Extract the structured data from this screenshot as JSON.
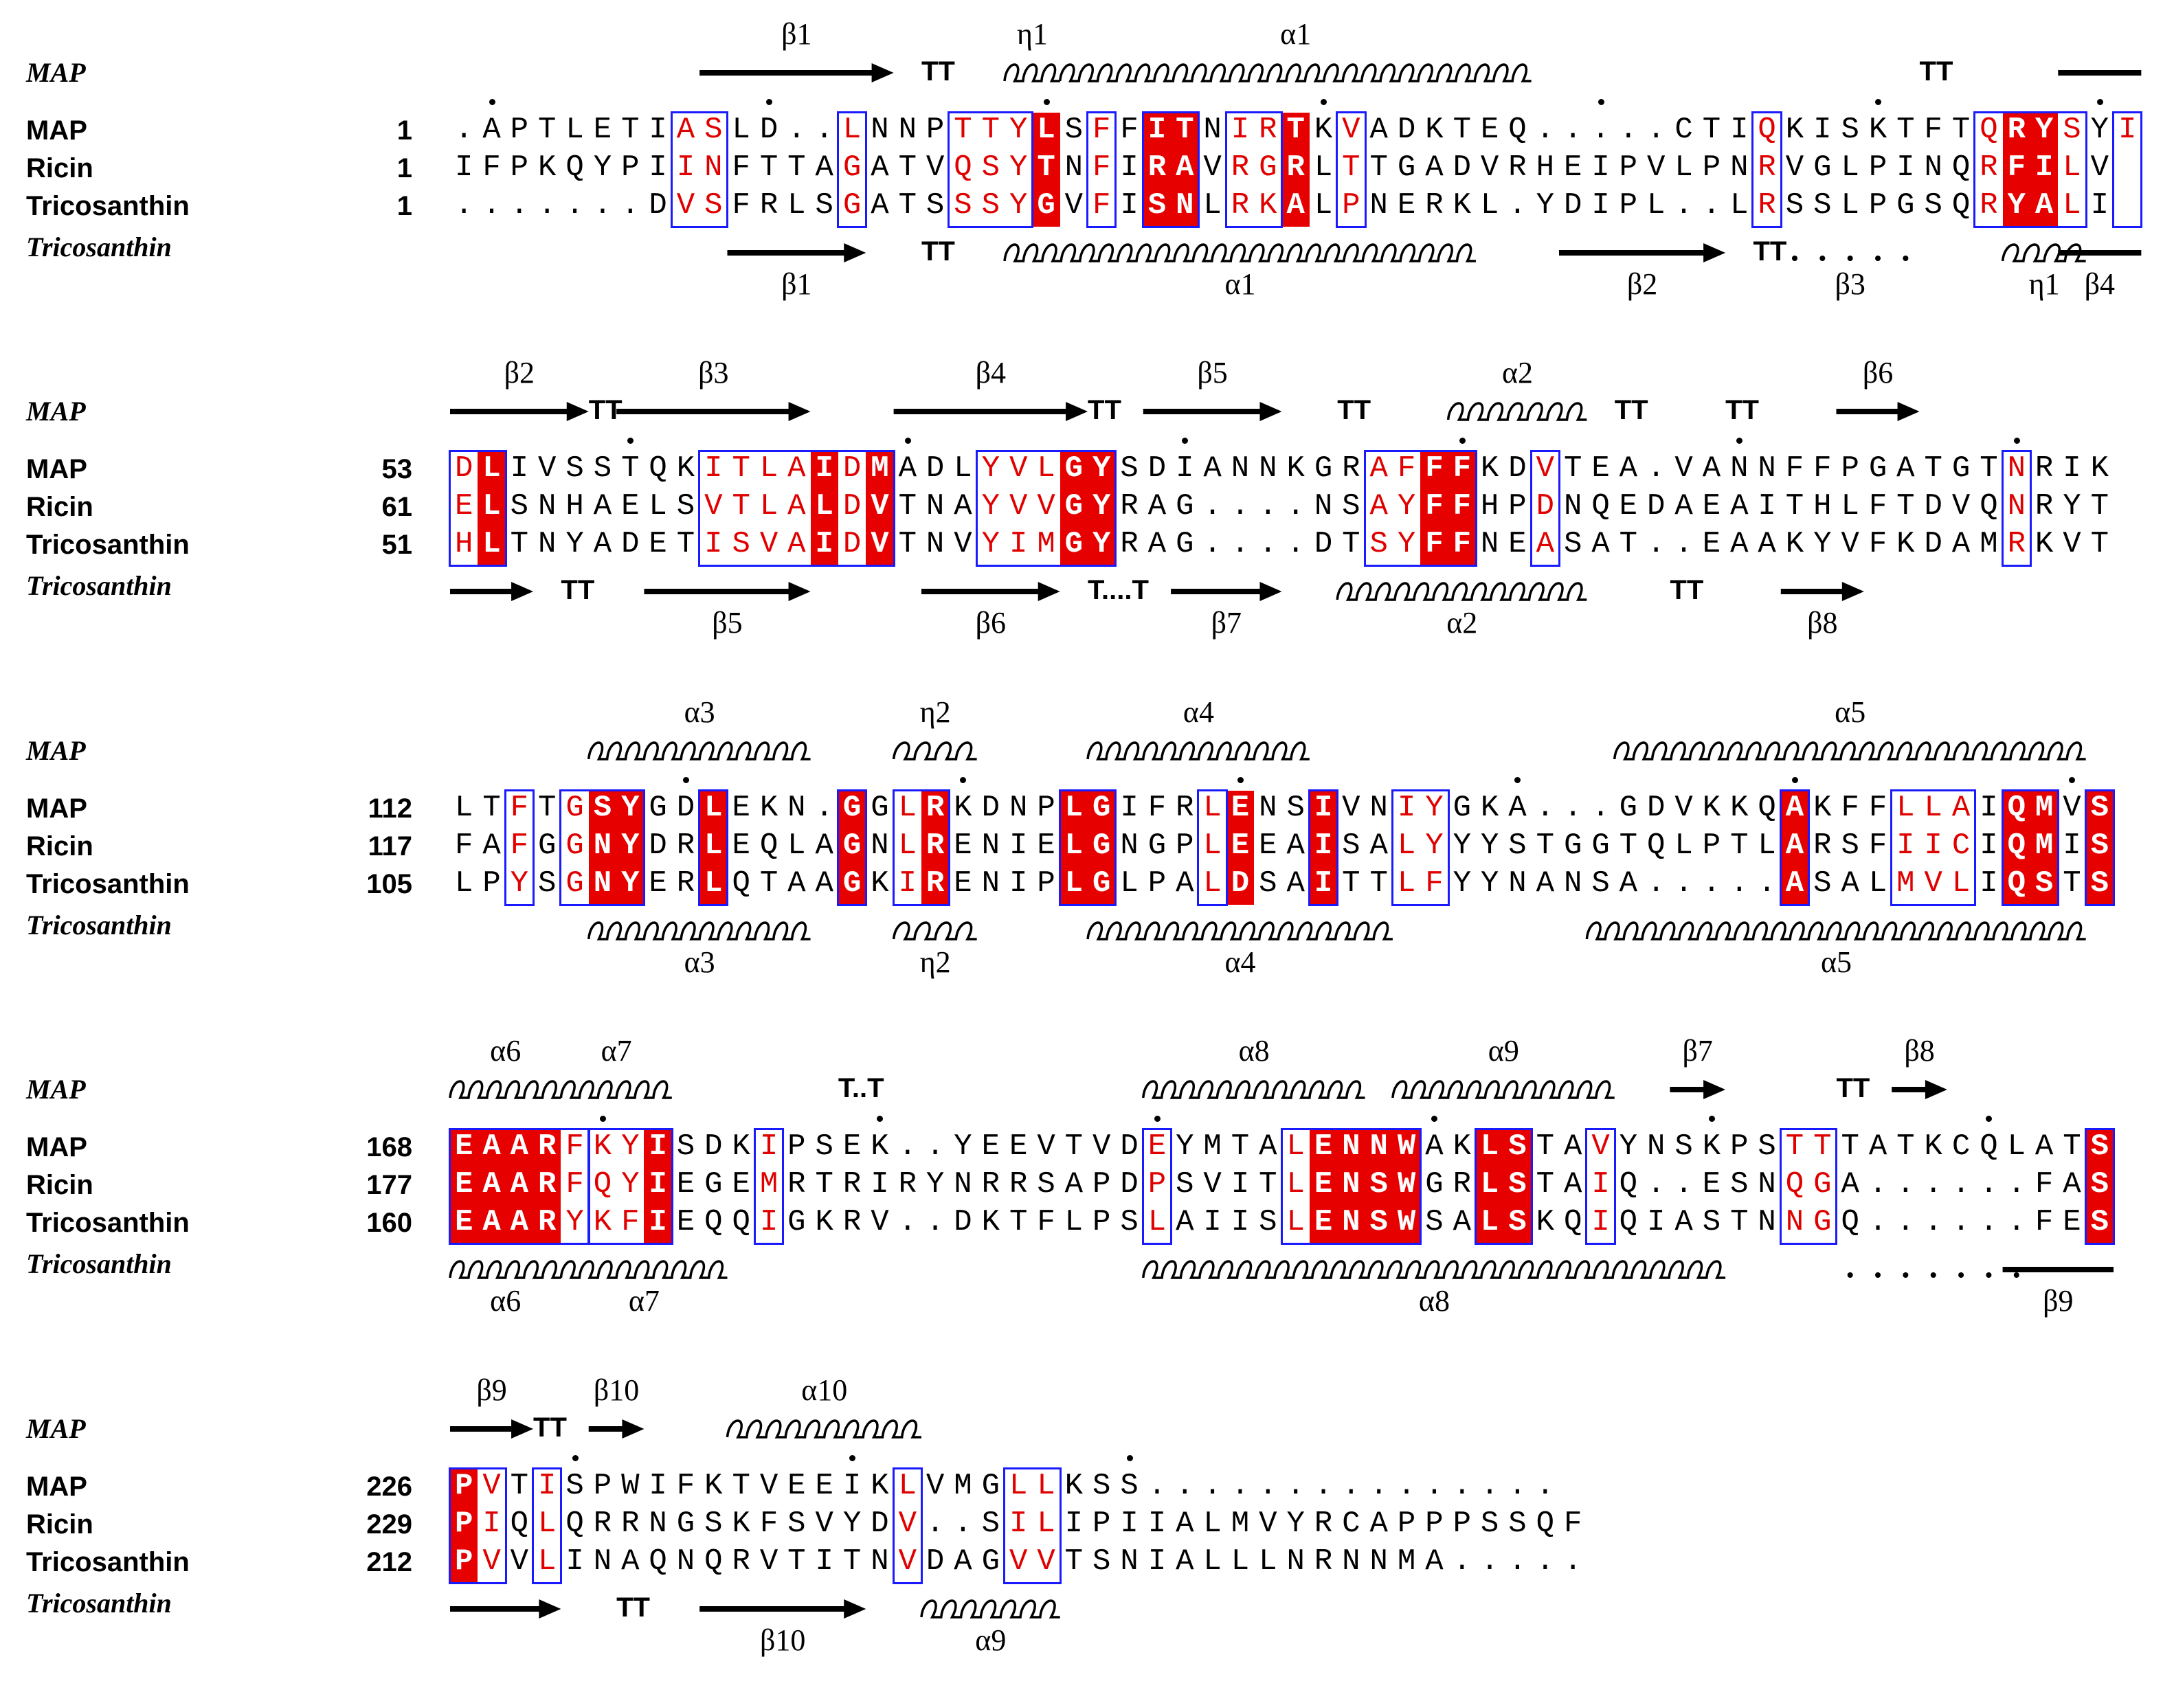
{
  "blocks": [
    {
      "sequences": [
        {
          "name": "MAP",
          "start": "1",
          "seq": ".APTLETIASLD..LNNPTTYLSFFITNIRTKVADKTEQ.....CTIQKISKTFTQRYSYI"
        },
        {
          "name": "Ricin",
          "start": "1",
          "seq": "IFPKQYPIINFTTAGATVQSYTNFIRAVRGRLTTGADVRHEIPVLPNRVGLPINQRFILV"
        },
        {
          "name": "Tricosanthin",
          "start": "1",
          "seq": ".......DVSFRLSGATSSSYGVFISNLRKALPNERKL.YDIPL..LRSSLPGSQRYALI"
        }
      ],
      "top_label": "MAP",
      "bottom_label": "Tricosanthin",
      "top_ss": [
        {
          "type": "arrow",
          "from": 9,
          "to": 15,
          "label": "β1"
        },
        {
          "type": "tt",
          "at": 17,
          "text": "TT"
        },
        {
          "type": "helix",
          "from": 20,
          "to": 21,
          "label": "η1"
        },
        {
          "type": "helix",
          "from": 22,
          "to": 38,
          "label": "α1"
        },
        {
          "type": "tt",
          "at": 53,
          "text": "TT"
        },
        {
          "type": "bar",
          "from": 58,
          "to": 60
        }
      ],
      "bottom_ss": [
        {
          "type": "arrow",
          "from": 10,
          "to": 14,
          "label": "β1"
        },
        {
          "type": "tt",
          "at": 17,
          "text": "TT"
        },
        {
          "type": "helix",
          "from": 20,
          "to": 36,
          "label": "α1"
        },
        {
          "type": "arrow",
          "from": 40,
          "to": 45,
          "label": "β2"
        },
        {
          "type": "tt",
          "at": 47,
          "text": "TT"
        },
        {
          "type": "dotted",
          "from": 48,
          "to": 52,
          "label": "β3"
        },
        {
          "type": "helix",
          "from": 56,
          "to": 58,
          "label": "η1"
        },
        {
          "type": "bar",
          "from": 58,
          "to": 60,
          "label": "β4"
        }
      ],
      "dots": [
        1,
        11,
        21,
        31,
        41,
        51,
        59
      ]
    },
    {
      "sequences": [
        {
          "name": "MAP",
          "start": "53",
          "seq": "DLIVSSTQKITLAIDMADLYVLGYSDIANNKGRAFFFKDVTEA.VANNFFPGATGTNRIK"
        },
        {
          "name": "Ricin",
          "start": "61",
          "seq": "ELSNHAELSVTLALDVTNAYVVGYRAG....NSAYFFHPDNQEDAEAITHLFTDVQNRYT"
        },
        {
          "name": "Tricosanthin",
          "start": "51",
          "seq": "HLTNYADETISVAIDVTNVYIMGYRAG....DTSYFFNEASAT..EAAKYVFKDAMRKVT"
        }
      ],
      "top_label": "MAP",
      "bottom_label": "Tricosanthin",
      "top_ss": [
        {
          "type": "arrow",
          "from": 0,
          "to": 4,
          "label": "β2"
        },
        {
          "type": "tt",
          "at": 5,
          "text": "TT"
        },
        {
          "type": "arrow",
          "from": 6,
          "to": 12,
          "label": "β3"
        },
        {
          "type": "arrow",
          "from": 16,
          "to": 22,
          "label": "β4"
        },
        {
          "type": "tt",
          "at": 23,
          "text": "TT"
        },
        {
          "type": "arrow",
          "from": 25,
          "to": 29,
          "label": "β5"
        },
        {
          "type": "tt",
          "at": 32,
          "text": "TT"
        },
        {
          "type": "helix",
          "from": 36,
          "to": 40,
          "label": "α2"
        },
        {
          "type": "tt",
          "at": 42,
          "text": "TT"
        },
        {
          "type": "tt",
          "at": 46,
          "text": "TT"
        },
        {
          "type": "arrow",
          "from": 50,
          "to": 52,
          "label": "β6"
        }
      ],
      "bottom_ss": [
        {
          "type": "arrow",
          "from": 0,
          "to": 2
        },
        {
          "type": "tt",
          "at": 4,
          "text": "TT"
        },
        {
          "type": "arrow",
          "from": 7,
          "to": 12,
          "label": "β5"
        },
        {
          "type": "arrow",
          "from": 17,
          "to": 21,
          "label": "β6"
        },
        {
          "type": "tt",
          "at": 23,
          "text": "T....T"
        },
        {
          "type": "arrow",
          "from": 26,
          "to": 29,
          "label": "β7"
        },
        {
          "type": "helix",
          "from": 32,
          "to": 40,
          "label": "α2"
        },
        {
          "type": "tt",
          "at": 44,
          "text": "TT"
        },
        {
          "type": "arrow",
          "from": 48,
          "to": 50,
          "label": "β8"
        }
      ],
      "dots": [
        6,
        16,
        26,
        36,
        46,
        56
      ]
    },
    {
      "sequences": [
        {
          "name": "MAP",
          "start": "112",
          "seq": "LTFTGSYGDLEKN.GGLRKDNPLGIFRLENSIVNIYGKA...GDVKKQAKFFLLAIQMVS"
        },
        {
          "name": "Ricin",
          "start": "117",
          "seq": "FAFGGNYDRLEQLAGNLRENIELGNGPLEEAISALYYYSTGGTQLPTLARSFIICIQMIS"
        },
        {
          "name": "Tricosanthin",
          "start": "105",
          "seq": "LPYSGNYERLQTAAGKIRENIPLGLPALDSAITTLFYYNANSA.....ASALMVLIQSTS"
        }
      ],
      "top_label": "MAP",
      "bottom_label": "Tricosanthin",
      "top_ss": [
        {
          "type": "helix",
          "from": 5,
          "to": 12,
          "label": "α3"
        },
        {
          "type": "helix",
          "from": 16,
          "to": 18,
          "label": "η2"
        },
        {
          "type": "helix",
          "from": 23,
          "to": 30,
          "label": "α4"
        },
        {
          "type": "helix",
          "from": 42,
          "to": 58,
          "label": "α5"
        }
      ],
      "bottom_ss": [
        {
          "type": "helix",
          "from": 5,
          "to": 12,
          "label": "α3"
        },
        {
          "type": "helix",
          "from": 16,
          "to": 18,
          "label": "η2"
        },
        {
          "type": "helix",
          "from": 23,
          "to": 33,
          "label": "α4"
        },
        {
          "type": "helix",
          "from": 41,
          "to": 58,
          "label": "α5"
        }
      ],
      "dots": [
        8,
        18,
        28,
        38,
        48,
        58
      ]
    },
    {
      "sequences": [
        {
          "name": "MAP",
          "start": "168",
          "seq": "EAARFKYISDKIPSEK..YEEVTVDEYMTALENNWAKLSTAVYNSKPSTTTATKCQLATS"
        },
        {
          "name": "Ricin",
          "start": "177",
          "seq": "EAARFQYIEGEMRTRIRYNRRSAPDPSVITLENSWGRLSTAIQ..ESNQGA......FAS"
        },
        {
          "name": "Tricosanthin",
          "start": "160",
          "seq": "EAARYKFIEQQIGKRV..DKTFLPSLAIISLENSWSALSKQIQIASTNNGQ......FES"
        }
      ],
      "top_label": "MAP",
      "bottom_label": "Tricosanthin",
      "top_ss": [
        {
          "type": "helix",
          "from": 0,
          "to": 3,
          "label": "α6"
        },
        {
          "type": "helix",
          "from": 4,
          "to": 7,
          "label": "α7"
        },
        {
          "type": "tt",
          "at": 14,
          "text": "T..T"
        },
        {
          "type": "helix",
          "from": 25,
          "to": 32,
          "label": "α8"
        },
        {
          "type": "helix",
          "from": 34,
          "to": 41,
          "label": "α9"
        },
        {
          "type": "arrow",
          "from": 44,
          "to": 45,
          "label": "β7"
        },
        {
          "type": "tt",
          "at": 50,
          "text": "TT"
        },
        {
          "type": "arrow",
          "from": 52,
          "to": 53,
          "label": "β8"
        }
      ],
      "bottom_ss": [
        {
          "type": "helix",
          "from": 0,
          "to": 3,
          "label": "α6"
        },
        {
          "type": "helix",
          "from": 4,
          "to": 9,
          "label": "α7"
        },
        {
          "type": "helix",
          "from": 25,
          "to": 45,
          "label": "α8"
        },
        {
          "type": "dotted",
          "from": 50,
          "to": 56
        },
        {
          "type": "bar",
          "from": 56,
          "to": 59,
          "label": "β9"
        }
      ],
      "dots": [
        5,
        15,
        25,
        35,
        45,
        55
      ]
    },
    {
      "sequences": [
        {
          "name": "MAP",
          "start": "226",
          "seq": "PVTISPWIFKTVEEIKLVMGLLKSS..............."
        },
        {
          "name": "Ricin",
          "start": "229",
          "seq": "PIQLQRRNGSKFSVYDV..SILIPIIALMVYRCAPPPSSQF"
        },
        {
          "name": "Tricosanthin",
          "start": "212",
          "seq": "PVVLINAQNQRVTITNVDAGVVTSNIALLLNRNNMA....."
        }
      ],
      "top_label": "MAP",
      "bottom_label": "Tricosanthin",
      "top_ss": [
        {
          "type": "arrow",
          "from": 0,
          "to": 2,
          "label": "β9"
        },
        {
          "type": "tt",
          "at": 3,
          "text": "TT"
        },
        {
          "type": "arrow",
          "from": 5,
          "to": 6,
          "label": "β10"
        },
        {
          "type": "helix",
          "from": 10,
          "to": 16,
          "label": "α10"
        }
      ],
      "bottom_ss": [
        {
          "type": "arrow",
          "from": 0,
          "to": 3
        },
        {
          "type": "tt",
          "at": 6,
          "text": "TT"
        },
        {
          "type": "arrow",
          "from": 9,
          "to": 14,
          "label": "β10"
        },
        {
          "type": "helix",
          "from": 17,
          "to": 21,
          "label": "α9"
        }
      ],
      "dots": [
        4,
        14,
        24
      ]
    }
  ],
  "identical_cols": [
    [
      21,
      25,
      26,
      30,
      56,
      57
    ],
    [
      1,
      13,
      15,
      22,
      23,
      35,
      36
    ],
    [
      5,
      6,
      9,
      14,
      17,
      22,
      23,
      28,
      31,
      48,
      56,
      57,
      59
    ],
    [
      0,
      1,
      2,
      3,
      7,
      31,
      32,
      33,
      34,
      37,
      38,
      59
    ],
    [
      0
    ]
  ],
  "similar_groups": [
    [
      [
        8,
        9
      ],
      [
        14,
        14
      ],
      [
        18,
        20
      ],
      [
        23,
        23
      ],
      [
        25,
        26
      ],
      [
        28,
        29
      ],
      [
        32,
        32
      ],
      [
        47,
        47
      ],
      [
        55,
        58
      ],
      [
        60,
        60
      ]
    ],
    [
      [
        0,
        1
      ],
      [
        9,
        15
      ],
      [
        19,
        23
      ],
      [
        33,
        36
      ],
      [
        39,
        39
      ],
      [
        56,
        56
      ]
    ],
    [
      [
        2,
        2
      ],
      [
        4,
        6
      ],
      [
        9,
        9
      ],
      [
        14,
        14
      ],
      [
        16,
        17
      ],
      [
        22,
        23
      ],
      [
        27,
        27
      ],
      [
        31,
        31
      ],
      [
        34,
        35
      ],
      [
        48,
        48
      ],
      [
        52,
        54
      ],
      [
        56,
        57
      ],
      [
        59,
        59
      ]
    ],
    [
      [
        0,
        4
      ],
      [
        5,
        7
      ],
      [
        11,
        11
      ],
      [
        25,
        25
      ],
      [
        30,
        34
      ],
      [
        37,
        38
      ],
      [
        41,
        41
      ],
      [
        48,
        49
      ],
      [
        59,
        59
      ]
    ],
    [
      [
        0,
        1
      ],
      [
        3,
        3
      ],
      [
        16,
        16
      ],
      [
        20,
        21
      ]
    ]
  ],
  "colors": {
    "identical_bg": "#e60000",
    "similar_text": "#e00000",
    "box": "#1a1aff"
  }
}
